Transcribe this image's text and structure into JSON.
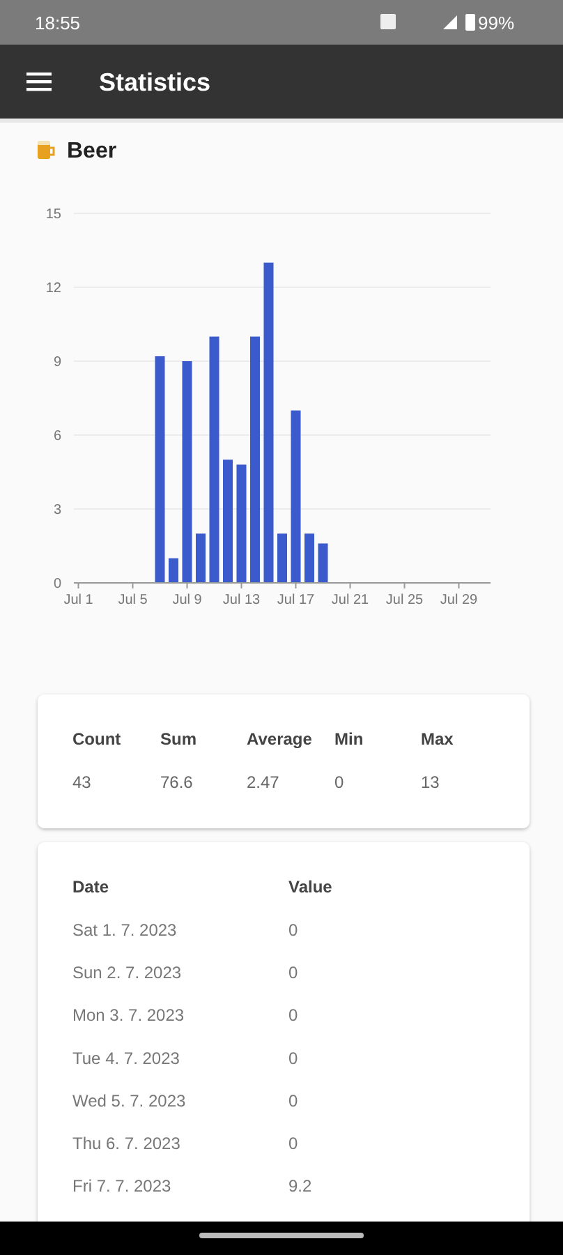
{
  "chart_data": [
    {
      "type": "bar",
      "title": "Beer",
      "annotations": [
        "18:55",
        "99%",
        "Statistics"
      ],
      "x": [
        "2023-07-07",
        "2023-07-08",
        "2023-07-09",
        "2023-07-10",
        "2023-07-11",
        "2023-07-12",
        "2023-07-13",
        "2023-07-14",
        "2023-07-15",
        "2023-07-16",
        "2023-07-17",
        "2023-07-18",
        "2023-07-19"
      ],
      "values": [
        9.2,
        1,
        9,
        2,
        10,
        5,
        4.8,
        10,
        13,
        2,
        7,
        2,
        1.6
      ],
      "color": "#3b5bcc",
      "xlim": [
        "2023-06-30T16:00",
        "2023-07-31T08:00"
      ],
      "xticks": [
        {
          "value": "2023-07-01",
          "label": "Jul 1"
        },
        {
          "value": "2023-07-05",
          "label": "Jul 5"
        },
        {
          "value": "2023-07-09",
          "label": "Jul 9"
        },
        {
          "value": "2023-07-13",
          "label": "Jul 13"
        },
        {
          "value": "2023-07-17",
          "label": "Jul 17"
        },
        {
          "value": "2023-07-21",
          "label": "Jul 21"
        },
        {
          "value": "2023-07-25",
          "label": "Jul 25"
        },
        {
          "value": "2023-07-29",
          "label": "Jul 29"
        }
      ],
      "ylim": [
        0,
        15
      ],
      "yticks": [
        0,
        3,
        6,
        9,
        12,
        15
      ],
      "grid": "y"
    },
    {
      "type": "other",
      "categories": [
        "Count",
        "Sum",
        "Average",
        "Min",
        "Max"
      ],
      "values": [
        43,
        76.6,
        2.47,
        0,
        13
      ],
      "data_labels": true
    },
    {
      "type": "other",
      "xlabel": "Date",
      "ylabel": "Value",
      "categories": [
        "Sat 1. 7. 2023",
        "Sun 2. 7. 2023",
        "Mon 3. 7. 2023",
        "Tue 4. 7. 2023",
        "Wed 5. 7. 2023",
        "Thu 6. 7. 2023",
        "Fri 7. 7. 2023"
      ],
      "values": [
        0,
        0,
        0,
        0,
        0,
        0,
        9.2
      ],
      "data_labels": true
    }
  ]
}
